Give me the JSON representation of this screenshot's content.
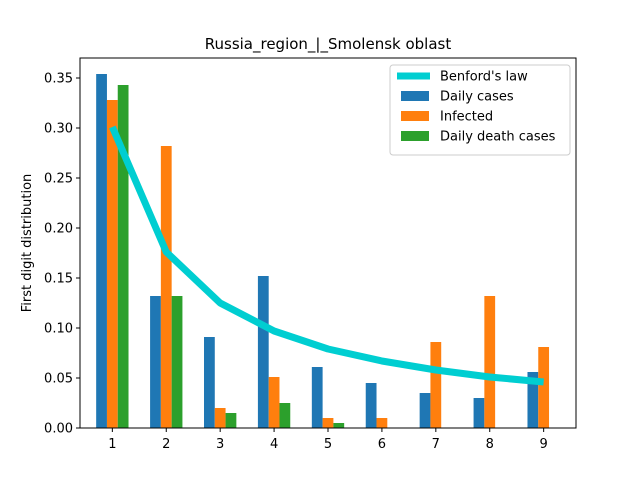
{
  "chart_data": {
    "type": "bar",
    "title": "Russia_region_|_Smolensk oblast",
    "xlabel": "",
    "ylabel": "First digit distribution",
    "categories": [
      "1",
      "2",
      "3",
      "4",
      "5",
      "6",
      "7",
      "8",
      "9"
    ],
    "ylim": [
      0,
      0.37
    ],
    "yticks": [
      "0.00",
      "0.05",
      "0.10",
      "0.15",
      "0.20",
      "0.25",
      "0.30",
      "0.35"
    ],
    "grid": false,
    "legend_placement": "top-right",
    "line_series": {
      "name": "Benford's law",
      "color": "#00CED1",
      "values": [
        0.301,
        0.176,
        0.125,
        0.097,
        0.079,
        0.067,
        0.058,
        0.051,
        0.046
      ]
    },
    "series": [
      {
        "name": "Daily cases",
        "color": "#1f77b4",
        "values": [
          0.354,
          0.132,
          0.091,
          0.152,
          0.061,
          0.045,
          0.035,
          0.03,
          0.056
        ]
      },
      {
        "name": "Infected",
        "color": "#ff7f0e",
        "values": [
          0.328,
          0.282,
          0.02,
          0.051,
          0.01,
          0.01,
          0.086,
          0.132,
          0.081
        ]
      },
      {
        "name": "Daily death cases",
        "color": "#2ca02c",
        "values": [
          0.343,
          0.132,
          0.015,
          0.025,
          0.005,
          0.0,
          0.0,
          0.0,
          0.0
        ]
      }
    ]
  }
}
